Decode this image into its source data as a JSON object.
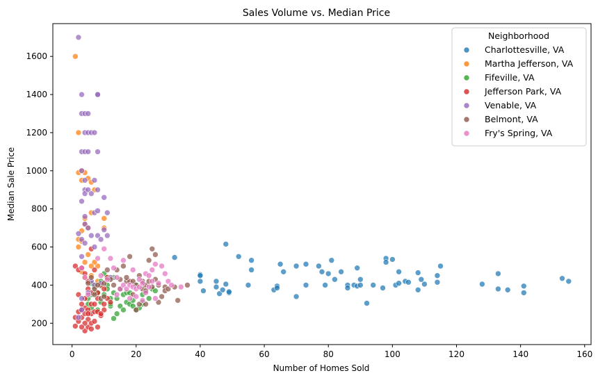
{
  "chart_data": {
    "type": "scatter",
    "title": "Sales Volume vs. Median Price",
    "xlabel": "Number of Homes Sold",
    "ylabel": "Median Sale Price",
    "xlim": [
      -6,
      162
    ],
    "ylim": [
      88,
      1772
    ],
    "xticks": [
      0,
      20,
      40,
      60,
      80,
      100,
      120,
      140,
      160
    ],
    "yticks": [
      200,
      400,
      600,
      800,
      1000,
      1200,
      1400,
      1600
    ],
    "grid": false,
    "legend": {
      "title": "Neighborhood",
      "placement": "top-right"
    },
    "series": [
      {
        "name": "Charlottesville, VA",
        "color": "#1f77b4",
        "points": [
          [
            32,
            545
          ],
          [
            40,
            455
          ],
          [
            40,
            450
          ],
          [
            40,
            420
          ],
          [
            41,
            370
          ],
          [
            45,
            390
          ],
          [
            45,
            420
          ],
          [
            46,
            355
          ],
          [
            47,
            375
          ],
          [
            48,
            615
          ],
          [
            48,
            405
          ],
          [
            49,
            360
          ],
          [
            49,
            365
          ],
          [
            52,
            550
          ],
          [
            55,
            400
          ],
          [
            56,
            530
          ],
          [
            56,
            480
          ],
          [
            63,
            375
          ],
          [
            64,
            395
          ],
          [
            64,
            385
          ],
          [
            65,
            510
          ],
          [
            66,
            470
          ],
          [
            70,
            500
          ],
          [
            70,
            340
          ],
          [
            73,
            510
          ],
          [
            73,
            400
          ],
          [
            77,
            500
          ],
          [
            78,
            470
          ],
          [
            79,
            400
          ],
          [
            80,
            460
          ],
          [
            81,
            530
          ],
          [
            82,
            430
          ],
          [
            84,
            470
          ],
          [
            86,
            400
          ],
          [
            86,
            385
          ],
          [
            88,
            400
          ],
          [
            89,
            395
          ],
          [
            89,
            490
          ],
          [
            90,
            430
          ],
          [
            90,
            400
          ],
          [
            92,
            305
          ],
          [
            94,
            400
          ],
          [
            97,
            385
          ],
          [
            98,
            540
          ],
          [
            98,
            520
          ],
          [
            100,
            535
          ],
          [
            101,
            400
          ],
          [
            102,
            470
          ],
          [
            102,
            410
          ],
          [
            104,
            420
          ],
          [
            105,
            415
          ],
          [
            108,
            465
          ],
          [
            108,
            375
          ],
          [
            109,
            430
          ],
          [
            110,
            405
          ],
          [
            114,
            415
          ],
          [
            114,
            450
          ],
          [
            115,
            500
          ],
          [
            128,
            405
          ],
          [
            133,
            460
          ],
          [
            133,
            380
          ],
          [
            136,
            375
          ],
          [
            141,
            395
          ],
          [
            141,
            360
          ],
          [
            153,
            435
          ],
          [
            155,
            420
          ]
        ]
      },
      {
        "name": "Martha Jefferson, VA",
        "color": "#ff7f0e",
        "points": [
          [
            1,
            1600
          ],
          [
            2,
            1200
          ],
          [
            2,
            990
          ],
          [
            2,
            640
          ],
          [
            2,
            600
          ],
          [
            3,
            1000
          ],
          [
            3,
            950
          ],
          [
            3,
            685
          ],
          [
            3,
            630
          ],
          [
            4,
            990
          ],
          [
            4,
            750
          ],
          [
            4,
            720
          ],
          [
            4,
            520
          ],
          [
            5,
            960
          ],
          [
            5,
            700
          ],
          [
            6,
            940
          ],
          [
            6,
            780
          ],
          [
            6,
            450
          ],
          [
            7,
            900
          ],
          [
            8,
            500
          ],
          [
            8,
            420
          ],
          [
            10,
            750
          ],
          [
            10,
            700
          ],
          [
            3,
            470
          ],
          [
            5,
            560
          ],
          [
            7,
            520
          ],
          [
            4,
            440
          ],
          [
            6,
            500
          ]
        ]
      },
      {
        "name": "Fifeville, VA",
        "color": "#2ca02c",
        "points": [
          [
            5,
            330
          ],
          [
            5,
            300
          ],
          [
            6,
            350
          ],
          [
            6,
            280
          ],
          [
            7,
            400
          ],
          [
            7,
            390
          ],
          [
            8,
            270
          ],
          [
            8,
            360
          ],
          [
            9,
            395
          ],
          [
            9,
            310
          ],
          [
            10,
            460
          ],
          [
            10,
            350
          ],
          [
            11,
            400
          ],
          [
            11,
            440
          ],
          [
            12,
            290
          ],
          [
            12,
            300
          ],
          [
            12,
            330
          ],
          [
            13,
            440
          ],
          [
            13,
            225
          ],
          [
            14,
            250
          ],
          [
            14,
            330
          ],
          [
            15,
            290
          ],
          [
            15,
            380
          ],
          [
            16,
            350
          ],
          [
            16,
            270
          ],
          [
            17,
            310
          ],
          [
            17,
            360
          ],
          [
            18,
            300
          ],
          [
            19,
            320
          ],
          [
            19,
            290
          ],
          [
            20,
            400
          ],
          [
            20,
            270
          ],
          [
            21,
            280
          ],
          [
            22,
            310
          ],
          [
            22,
            350
          ],
          [
            23,
            370
          ],
          [
            24,
            330
          ],
          [
            25,
            380
          ],
          [
            26,
            370
          ],
          [
            6,
            410
          ],
          [
            7,
            360
          ],
          [
            11,
            380
          ],
          [
            13,
            360
          ],
          [
            18,
            360
          ],
          [
            22,
            300
          ],
          [
            9,
            420
          ]
        ]
      },
      {
        "name": "Jefferson Park, VA",
        "color": "#d62728",
        "points": [
          [
            1,
            185
          ],
          [
            1,
            230
          ],
          [
            1,
            500
          ],
          [
            2,
            260
          ],
          [
            2,
            210
          ],
          [
            2,
            480
          ],
          [
            3,
            270
          ],
          [
            3,
            230
          ],
          [
            3,
            490
          ],
          [
            4,
            160
          ],
          [
            4,
            250
          ],
          [
            4,
            280
          ],
          [
            4,
            330
          ],
          [
            5,
            180
          ],
          [
            5,
            220
          ],
          [
            5,
            270
          ],
          [
            5,
            380
          ],
          [
            6,
            200
          ],
          [
            6,
            250
          ],
          [
            6,
            300
          ],
          [
            6,
            590
          ],
          [
            7,
            210
          ],
          [
            7,
            260
          ],
          [
            7,
            480
          ],
          [
            8,
            180
          ],
          [
            8,
            260
          ],
          [
            8,
            330
          ],
          [
            9,
            240
          ],
          [
            9,
            400
          ],
          [
            10,
            300
          ],
          [
            10,
            270
          ],
          [
            11,
            440
          ],
          [
            11,
            330
          ],
          [
            3,
            300
          ],
          [
            4,
            200
          ],
          [
            5,
            250
          ],
          [
            6,
            360
          ],
          [
            7,
            300
          ],
          [
            8,
            360
          ],
          [
            9,
            250
          ],
          [
            12,
            310
          ],
          [
            2,
            350
          ],
          [
            3,
            180
          ],
          [
            6,
            170
          ],
          [
            4,
            460
          ],
          [
            10,
            380
          ],
          [
            5,
            420
          ]
        ]
      },
      {
        "name": "Venable, VA",
        "color": "#9467bd",
        "points": [
          [
            2,
            1700
          ],
          [
            2,
            670
          ],
          [
            3,
            1400
          ],
          [
            3,
            1300
          ],
          [
            3,
            1100
          ],
          [
            3,
            1000
          ],
          [
            3,
            840
          ],
          [
            3,
            640
          ],
          [
            3,
            330
          ],
          [
            4,
            1300
          ],
          [
            4,
            1200
          ],
          [
            4,
            1100
          ],
          [
            4,
            950
          ],
          [
            4,
            900
          ],
          [
            4,
            880
          ],
          [
            4,
            760
          ],
          [
            4,
            720
          ],
          [
            4,
            620
          ],
          [
            5,
            1300
          ],
          [
            5,
            1200
          ],
          [
            5,
            1100
          ],
          [
            5,
            900
          ],
          [
            5,
            700
          ],
          [
            6,
            1200
          ],
          [
            6,
            880
          ],
          [
            6,
            660
          ],
          [
            7,
            1200
          ],
          [
            7,
            950
          ],
          [
            7,
            780
          ],
          [
            7,
            600
          ],
          [
            8,
            1400
          ],
          [
            8,
            1400
          ],
          [
            8,
            1100
          ],
          [
            8,
            900
          ],
          [
            8,
            790
          ],
          [
            8,
            660
          ],
          [
            9,
            640
          ],
          [
            10,
            860
          ],
          [
            10,
            690
          ],
          [
            11,
            780
          ],
          [
            11,
            660
          ],
          [
            12,
            440
          ],
          [
            6,
            420
          ],
          [
            7,
            400
          ],
          [
            9,
            410
          ],
          [
            2,
            230
          ],
          [
            3,
            270
          ],
          [
            5,
            360
          ],
          [
            3,
            550
          ]
        ]
      },
      {
        "name": "Belmont, VA",
        "color": "#8c564b",
        "points": [
          [
            5,
            410
          ],
          [
            6,
            440
          ],
          [
            7,
            380
          ],
          [
            7,
            350
          ],
          [
            8,
            400
          ],
          [
            9,
            330
          ],
          [
            10,
            340
          ],
          [
            10,
            410
          ],
          [
            11,
            480
          ],
          [
            12,
            430
          ],
          [
            13,
            400
          ],
          [
            14,
            480
          ],
          [
            15,
            380
          ],
          [
            15,
            430
          ],
          [
            16,
            500
          ],
          [
            17,
            420
          ],
          [
            18,
            420
          ],
          [
            18,
            550
          ],
          [
            19,
            420
          ],
          [
            19,
            350
          ],
          [
            20,
            400
          ],
          [
            21,
            300
          ],
          [
            21,
            450
          ],
          [
            22,
            380
          ],
          [
            22,
            420
          ],
          [
            23,
            370
          ],
          [
            23,
            400
          ],
          [
            24,
            530
          ],
          [
            24,
            420
          ],
          [
            25,
            590
          ],
          [
            25,
            390
          ],
          [
            26,
            560
          ],
          [
            26,
            430
          ],
          [
            27,
            400
          ],
          [
            27,
            310
          ],
          [
            28,
            340
          ],
          [
            29,
            390
          ],
          [
            29,
            370
          ],
          [
            30,
            380
          ],
          [
            32,
            390
          ],
          [
            33,
            320
          ],
          [
            36,
            400
          ],
          [
            23,
            300
          ],
          [
            17,
            440
          ],
          [
            20,
            270
          ]
        ]
      },
      {
        "name": "Fry's Spring, VA",
        "color": "#e377c2",
        "points": [
          [
            3,
            490
          ],
          [
            4,
            440
          ],
          [
            5,
            350
          ],
          [
            8,
            540
          ],
          [
            9,
            450
          ],
          [
            10,
            590
          ],
          [
            11,
            430
          ],
          [
            12,
            540
          ],
          [
            13,
            490
          ],
          [
            14,
            440
          ],
          [
            14,
            350
          ],
          [
            15,
            380
          ],
          [
            16,
            530
          ],
          [
            16,
            400
          ],
          [
            17,
            380
          ],
          [
            18,
            400
          ],
          [
            19,
            480
          ],
          [
            19,
            390
          ],
          [
            20,
            380
          ],
          [
            20,
            340
          ],
          [
            21,
            430
          ],
          [
            21,
            390
          ],
          [
            22,
            410
          ],
          [
            23,
            460
          ],
          [
            23,
            360
          ],
          [
            24,
            450
          ],
          [
            25,
            420
          ],
          [
            25,
            480
          ],
          [
            26,
            510
          ],
          [
            26,
            330
          ],
          [
            27,
            410
          ],
          [
            28,
            500
          ],
          [
            29,
            460
          ],
          [
            30,
            420
          ],
          [
            31,
            400
          ],
          [
            34,
            390
          ],
          [
            22,
            320
          ],
          [
            18,
            330
          ],
          [
            24,
            390
          ]
        ]
      }
    ]
  }
}
